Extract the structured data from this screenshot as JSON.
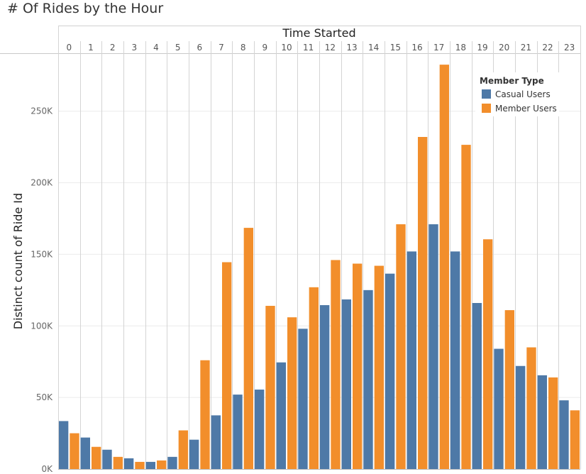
{
  "chart_data": {
    "type": "bar",
    "title": "# Of Rides by the Hour",
    "column_header": "Time Started",
    "ylabel": "Distinct count of Ride Id",
    "ylim": [
      0,
      290000
    ],
    "y_ticks": [
      {
        "value": 0,
        "label": "0K"
      },
      {
        "value": 50000,
        "label": "50K"
      },
      {
        "value": 100000,
        "label": "100K"
      },
      {
        "value": 150000,
        "label": "150K"
      },
      {
        "value": 200000,
        "label": "200K"
      },
      {
        "value": 250000,
        "label": "250K"
      }
    ],
    "categories": [
      "0",
      "1",
      "2",
      "3",
      "4",
      "5",
      "6",
      "7",
      "8",
      "9",
      "10",
      "11",
      "12",
      "13",
      "14",
      "15",
      "16",
      "17",
      "18",
      "19",
      "20",
      "21",
      "22",
      "23"
    ],
    "legend_title": "Member Type",
    "series": [
      {
        "name": "Casual Users",
        "color": "#4e79a7",
        "values": [
          33500,
          22000,
          13500,
          7500,
          5000,
          8500,
          20500,
          37500,
          52000,
          55500,
          74500,
          98000,
          114500,
          118500,
          125000,
          136500,
          152000,
          171000,
          152000,
          116000,
          84000,
          72000,
          65500,
          48000
        ]
      },
      {
        "name": "Member Users",
        "color": "#f28e2b",
        "values": [
          25000,
          15500,
          8500,
          5000,
          6000,
          27000,
          76000,
          144500,
          168500,
          114000,
          106000,
          127000,
          146000,
          143500,
          142000,
          171000,
          232000,
          282500,
          226500,
          160500,
          111000,
          85000,
          64000,
          41000
        ]
      }
    ]
  }
}
